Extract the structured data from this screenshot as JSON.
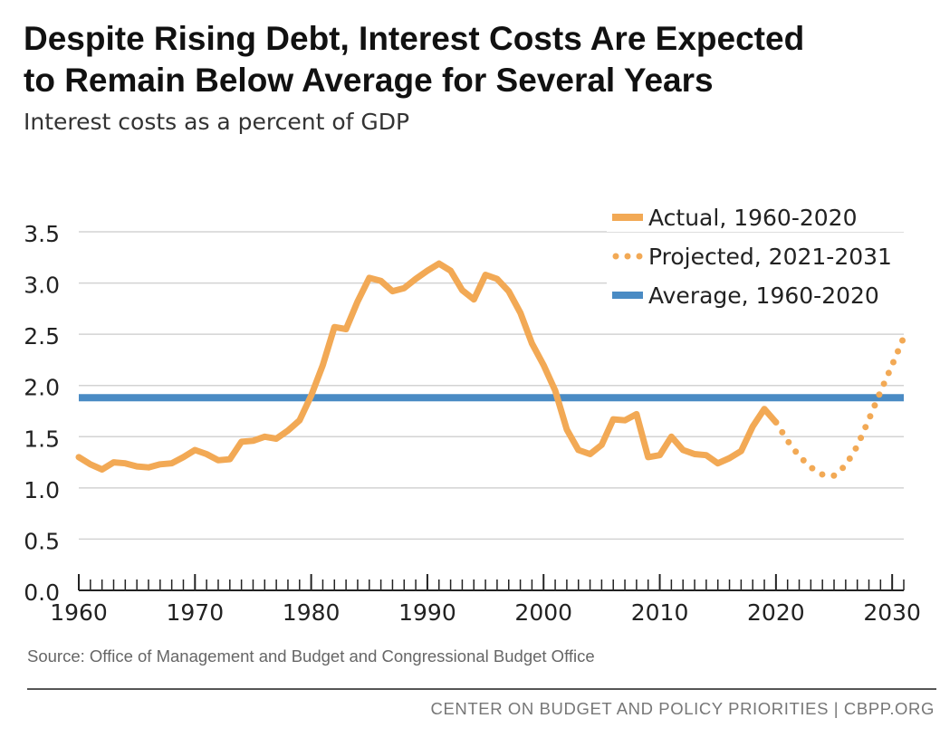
{
  "header": {
    "title_line1": "Despite Rising Debt, Interest Costs Are Expected",
    "title_line2": "to Remain Below Average for Several Years",
    "subtitle": "Interest costs as a percent of GDP"
  },
  "footer": {
    "source": "Source: Office of Management and Budget and Congressional Budget Office",
    "org": "CENTER ON BUDGET AND POLICY PRIORITIES",
    "separator": "|",
    "site": "CBPP.ORG"
  },
  "colors": {
    "actual": "#f2a955",
    "projected": "#f2a955",
    "average": "#4a8bc4",
    "grid": "#d3d3d3",
    "axis": "#222222"
  },
  "chart_data": {
    "type": "line",
    "title": "Despite Rising Debt, Interest Costs Are Expected to Remain Below Average for Several Years",
    "subtitle": "Interest costs as a percent of GDP",
    "xlabel": "",
    "ylabel": "",
    "xlim": [
      1960,
      2031
    ],
    "ylim": [
      0,
      3.5
    ],
    "y_ticks": [
      "0.0",
      "0.5",
      "1.0",
      "1.5",
      "2.0",
      "2.5",
      "3.0",
      "3.5"
    ],
    "x_tick_labels": [
      "1960",
      "1970",
      "1980",
      "1990",
      "2000",
      "2010",
      "2020",
      "2030"
    ],
    "grid": true,
    "legend_position": "top-right",
    "series": [
      {
        "name": "Actual, 1960-2020",
        "style": "solid",
        "x": [
          1960,
          1961,
          1962,
          1963,
          1964,
          1965,
          1966,
          1967,
          1968,
          1969,
          1970,
          1971,
          1972,
          1973,
          1974,
          1975,
          1976,
          1977,
          1978,
          1979,
          1980,
          1981,
          1982,
          1983,
          1984,
          1985,
          1986,
          1987,
          1988,
          1989,
          1990,
          1991,
          1992,
          1993,
          1994,
          1995,
          1996,
          1997,
          1998,
          1999,
          2000,
          2001,
          2002,
          2003,
          2004,
          2005,
          2006,
          2007,
          2008,
          2009,
          2010,
          2011,
          2012,
          2013,
          2014,
          2015,
          2016,
          2017,
          2018,
          2019,
          2020
        ],
        "values": [
          1.3,
          1.23,
          1.18,
          1.25,
          1.24,
          1.21,
          1.2,
          1.23,
          1.24,
          1.3,
          1.37,
          1.33,
          1.27,
          1.28,
          1.45,
          1.46,
          1.5,
          1.48,
          1.56,
          1.66,
          1.9,
          2.2,
          2.57,
          2.55,
          2.82,
          3.05,
          3.02,
          2.92,
          2.95,
          3.04,
          3.12,
          3.19,
          3.12,
          2.93,
          2.84,
          3.08,
          3.04,
          2.92,
          2.71,
          2.41,
          2.2,
          1.95,
          1.57,
          1.37,
          1.33,
          1.42,
          1.67,
          1.66,
          1.72,
          1.3,
          1.32,
          1.5,
          1.37,
          1.33,
          1.32,
          1.24,
          1.29,
          1.36,
          1.6,
          1.77,
          1.64
        ]
      },
      {
        "name": "Projected, 2021-2031",
        "style": "dotted",
        "x": [
          2020,
          2021,
          2022,
          2023,
          2024,
          2025,
          2026,
          2027,
          2028,
          2029,
          2030,
          2031
        ],
        "values": [
          1.64,
          1.46,
          1.31,
          1.2,
          1.13,
          1.12,
          1.22,
          1.41,
          1.67,
          1.94,
          2.2,
          2.47
        ]
      },
      {
        "name": "Average, 1960-2020",
        "style": "solid",
        "x": [
          1960,
          2031
        ],
        "values": [
          1.88,
          1.88
        ]
      }
    ]
  }
}
